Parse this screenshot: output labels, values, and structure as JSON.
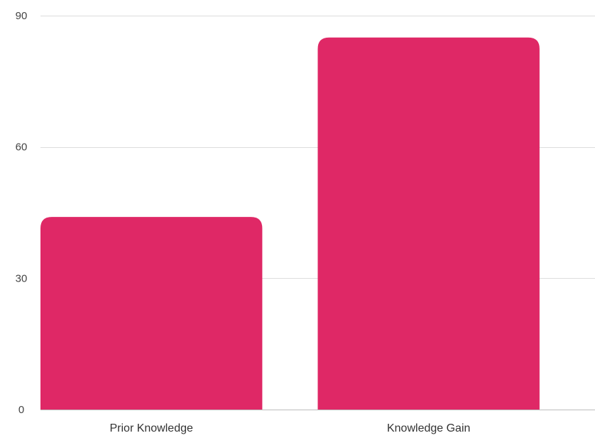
{
  "chart_data": {
    "type": "bar",
    "title": "",
    "xlabel": "",
    "ylabel": "",
    "categories": [
      "Prior Knowledge",
      "Knowledge Gain"
    ],
    "values": [
      44,
      85
    ],
    "ylim": [
      0,
      90
    ],
    "yticks": [
      "0",
      "30",
      "60",
      "90"
    ],
    "grid": true,
    "legend": "none",
    "bar_color": "#df2866"
  }
}
